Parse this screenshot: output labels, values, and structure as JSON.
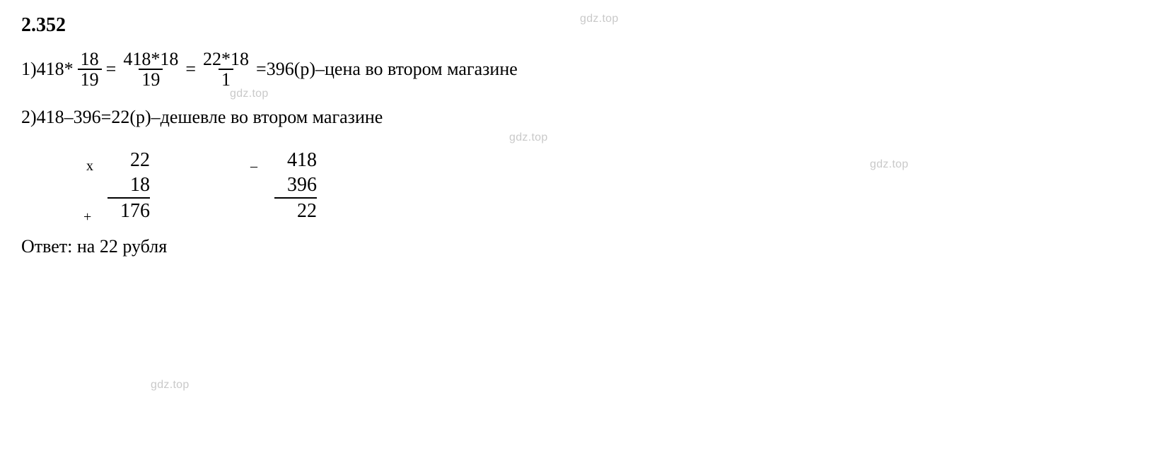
{
  "watermark": "gdz.top",
  "heading": "2.352",
  "step1": {
    "prefix": "1) ",
    "a": "418",
    "op_mul": " * ",
    "frac1_num": "18",
    "frac1_den": "19",
    "eq1": " = ",
    "frac2_num": "418*18",
    "frac2_den": "19",
    "eq2": " = ",
    "frac3_num": "22*18",
    "frac3_den": "1",
    "eq3": " = ",
    "result": "396",
    "unit": " (р)",
    "dash": " – ",
    "text": "цена во втором магазине"
  },
  "step2": {
    "prefix": "2) ",
    "a": "418",
    "minus": " – ",
    "b": "396",
    "eq": " = ",
    "result": "22",
    "unit": " (р)",
    "dash": " – ",
    "text": "дешевле во втором магазине"
  },
  "mult_calc": {
    "op_x": "х",
    "r1": "22",
    "r2": "18",
    "op_plus": "+",
    "r3": "176"
  },
  "subt_calc": {
    "op_minus": "–",
    "r1": "418",
    "r2": "396",
    "r3": "22"
  },
  "answer": {
    "label": "Ответ:",
    "text": " на 22 рубля"
  },
  "colors": {
    "text": "#000000",
    "background": "#ffffff",
    "watermark": "#c9c9c9"
  },
  "typography": {
    "body_fontsize_pt": 20,
    "heading_fontsize_pt": 21,
    "watermark_fontsize_pt": 12
  }
}
